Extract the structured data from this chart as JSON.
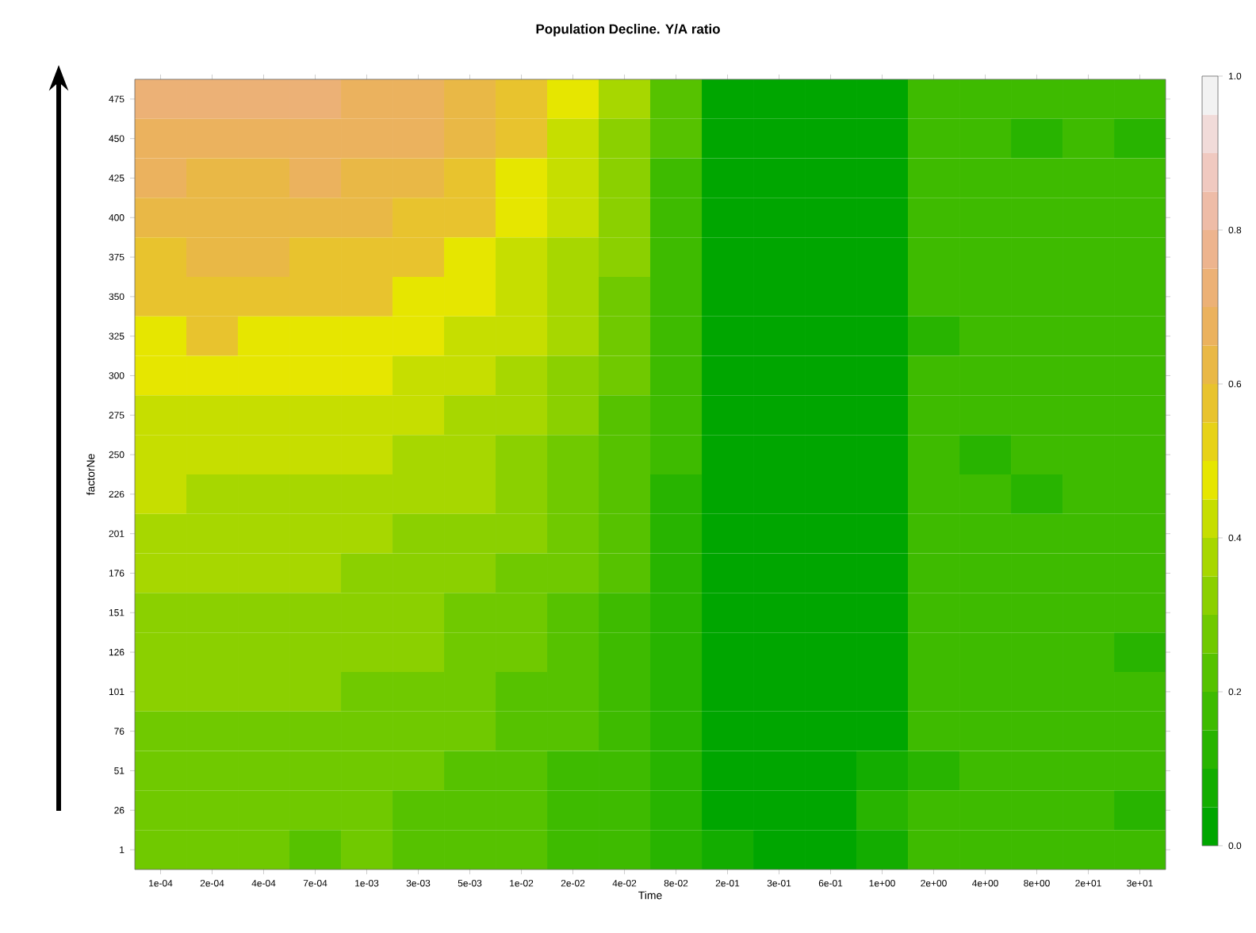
{
  "chart_data": {
    "type": "heatmap",
    "title": "Population Decline. Y/A ratio",
    "xlabel": "Time",
    "ylabel": "factorNe",
    "categories": [
      "1e-04",
      "2e-04",
      "4e-04",
      "7e-04",
      "1e-03",
      "3e-03",
      "5e-03",
      "1e-02",
      "2e-02",
      "4e-02",
      "8e-02",
      "2e-01",
      "3e-01",
      "6e-01",
      "1e+00",
      "2e+00",
      "4e+00",
      "8e+00",
      "2e+01",
      "3e+01"
    ],
    "y_categories": [
      "475",
      "450",
      "425",
      "400",
      "375",
      "350",
      "325",
      "300",
      "275",
      "250",
      "226",
      "201",
      "176",
      "151",
      "126",
      "101",
      "76",
      "51",
      "26",
      "1"
    ],
    "cells": [
      [
        0.725,
        0.725,
        0.725,
        0.725,
        0.675,
        0.675,
        0.625,
        0.575,
        0.475,
        0.375,
        0.225,
        0.025,
        0.025,
        0.025,
        0.025,
        0.175,
        0.175,
        0.175,
        0.175,
        0.175
      ],
      [
        0.675,
        0.675,
        0.675,
        0.675,
        0.675,
        0.675,
        0.625,
        0.575,
        0.425,
        0.325,
        0.225,
        0.025,
        0.025,
        0.025,
        0.025,
        0.175,
        0.175,
        0.125,
        0.175,
        0.125
      ],
      [
        0.675,
        0.625,
        0.625,
        0.675,
        0.625,
        0.625,
        0.575,
        0.475,
        0.425,
        0.325,
        0.175,
        0.025,
        0.025,
        0.025,
        0.025,
        0.175,
        0.175,
        0.175,
        0.175,
        0.175
      ],
      [
        0.625,
        0.625,
        0.625,
        0.625,
        0.625,
        0.575,
        0.575,
        0.475,
        0.425,
        0.325,
        0.175,
        0.025,
        0.025,
        0.025,
        0.025,
        0.175,
        0.175,
        0.175,
        0.175,
        0.175
      ],
      [
        0.575,
        0.625,
        0.625,
        0.575,
        0.575,
        0.575,
        0.475,
        0.425,
        0.375,
        0.325,
        0.175,
        0.025,
        0.025,
        0.025,
        0.025,
        0.175,
        0.175,
        0.175,
        0.175,
        0.175
      ],
      [
        0.575,
        0.575,
        0.575,
        0.575,
        0.575,
        0.475,
        0.475,
        0.425,
        0.375,
        0.275,
        0.175,
        0.025,
        0.025,
        0.025,
        0.025,
        0.175,
        0.175,
        0.175,
        0.175,
        0.175
      ],
      [
        0.475,
        0.575,
        0.475,
        0.475,
        0.475,
        0.475,
        0.425,
        0.425,
        0.375,
        0.275,
        0.175,
        0.025,
        0.025,
        0.025,
        0.025,
        0.125,
        0.175,
        0.175,
        0.175,
        0.175
      ],
      [
        0.475,
        0.475,
        0.475,
        0.475,
        0.475,
        0.425,
        0.425,
        0.375,
        0.325,
        0.275,
        0.175,
        0.025,
        0.025,
        0.025,
        0.025,
        0.175,
        0.175,
        0.175,
        0.175,
        0.175
      ],
      [
        0.425,
        0.425,
        0.425,
        0.425,
        0.425,
        0.425,
        0.375,
        0.375,
        0.325,
        0.225,
        0.175,
        0.025,
        0.025,
        0.025,
        0.025,
        0.175,
        0.175,
        0.175,
        0.175,
        0.175
      ],
      [
        0.425,
        0.425,
        0.425,
        0.425,
        0.425,
        0.375,
        0.375,
        0.325,
        0.275,
        0.225,
        0.175,
        0.025,
        0.025,
        0.025,
        0.025,
        0.175,
        0.125,
        0.175,
        0.175,
        0.175
      ],
      [
        0.425,
        0.375,
        0.375,
        0.375,
        0.375,
        0.375,
        0.375,
        0.325,
        0.275,
        0.225,
        0.125,
        0.025,
        0.025,
        0.025,
        0.025,
        0.175,
        0.175,
        0.125,
        0.175,
        0.175
      ],
      [
        0.375,
        0.375,
        0.375,
        0.375,
        0.375,
        0.325,
        0.325,
        0.325,
        0.275,
        0.225,
        0.125,
        0.025,
        0.025,
        0.025,
        0.025,
        0.175,
        0.175,
        0.175,
        0.175,
        0.175
      ],
      [
        0.375,
        0.375,
        0.375,
        0.375,
        0.325,
        0.325,
        0.325,
        0.275,
        0.275,
        0.225,
        0.125,
        0.025,
        0.025,
        0.025,
        0.025,
        0.175,
        0.175,
        0.175,
        0.175,
        0.175
      ],
      [
        0.325,
        0.325,
        0.325,
        0.325,
        0.325,
        0.325,
        0.275,
        0.275,
        0.225,
        0.175,
        0.125,
        0.025,
        0.025,
        0.025,
        0.025,
        0.175,
        0.175,
        0.175,
        0.175,
        0.175
      ],
      [
        0.325,
        0.325,
        0.325,
        0.325,
        0.325,
        0.325,
        0.275,
        0.275,
        0.225,
        0.175,
        0.125,
        0.025,
        0.025,
        0.025,
        0.025,
        0.175,
        0.175,
        0.175,
        0.175,
        0.125
      ],
      [
        0.325,
        0.325,
        0.325,
        0.325,
        0.275,
        0.275,
        0.275,
        0.225,
        0.225,
        0.175,
        0.125,
        0.025,
        0.025,
        0.025,
        0.025,
        0.175,
        0.175,
        0.175,
        0.175,
        0.175
      ],
      [
        0.275,
        0.275,
        0.275,
        0.275,
        0.275,
        0.275,
        0.275,
        0.225,
        0.225,
        0.175,
        0.125,
        0.025,
        0.025,
        0.025,
        0.025,
        0.175,
        0.175,
        0.175,
        0.175,
        0.175
      ],
      [
        0.275,
        0.275,
        0.275,
        0.275,
        0.275,
        0.275,
        0.225,
        0.225,
        0.175,
        0.175,
        0.125,
        0.025,
        0.025,
        0.025,
        0.075,
        0.125,
        0.175,
        0.175,
        0.175,
        0.175
      ],
      [
        0.275,
        0.275,
        0.275,
        0.275,
        0.275,
        0.225,
        0.225,
        0.225,
        0.175,
        0.175,
        0.125,
        0.025,
        0.025,
        0.025,
        0.125,
        0.175,
        0.175,
        0.175,
        0.175,
        0.125
      ],
      [
        0.275,
        0.275,
        0.275,
        0.225,
        0.275,
        0.225,
        0.225,
        0.225,
        0.175,
        0.175,
        0.125,
        0.075,
        0.025,
        0.025,
        0.075,
        0.175,
        0.175,
        0.175,
        0.175,
        0.175
      ]
    ],
    "clim": [
      0,
      1
    ],
    "cticks": [
      {
        "value": 0,
        "label": "0.0"
      },
      0.2,
      0.4,
      0.6,
      0.8,
      {
        "value": 1,
        "label": "1.0"
      }
    ]
  }
}
